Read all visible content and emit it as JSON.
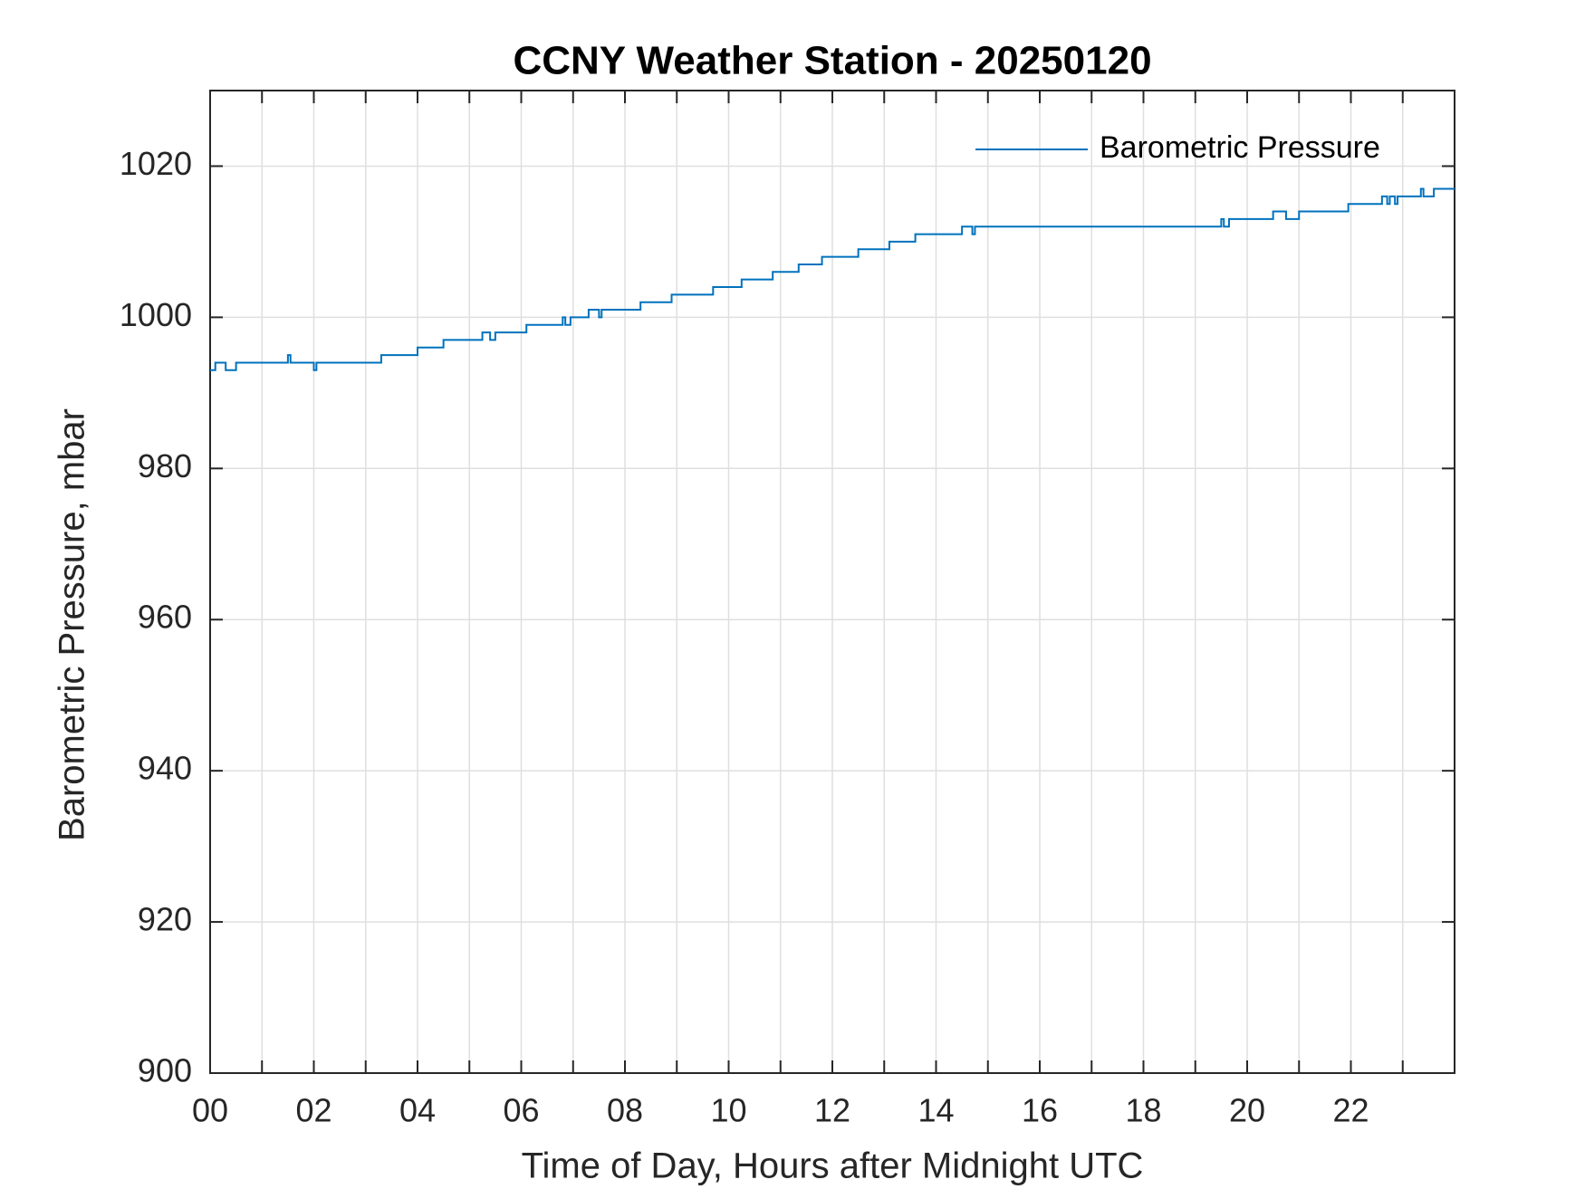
{
  "chart_data": {
    "type": "line",
    "title": "CCNY Weather Station - 20250120",
    "x_label": "Time of Day, Hours after Midnight UTC",
    "y_label": "Barometric Pressure, mbar",
    "xlim": [
      0,
      24
    ],
    "ylim": [
      900,
      1030
    ],
    "xticks": [
      {
        "value": 0,
        "label": "00"
      },
      {
        "value": 2,
        "label": "02"
      },
      {
        "value": 4,
        "label": "04"
      },
      {
        "value": 6,
        "label": "06"
      },
      {
        "value": 8,
        "label": "08"
      },
      10,
      12,
      14,
      16,
      18,
      20,
      22
    ],
    "x_minor_ticks": [
      1,
      3,
      5,
      7,
      9,
      11,
      13,
      15,
      17,
      19,
      21,
      23
    ],
    "yticks": [
      900,
      920,
      940,
      960,
      980,
      1000,
      1020
    ],
    "grid": true,
    "legend_position": "upper-right",
    "x": [
      0,
      0.1,
      0.1,
      0.3,
      0.3,
      0.5,
      0.5,
      1.5,
      1.5,
      1.55,
      1.55,
      2.0,
      2.0,
      2.05,
      2.05,
      3.3,
      3.3,
      4.0,
      4.0,
      4.5,
      4.5,
      5.25,
      5.25,
      5.4,
      5.4,
      5.5,
      5.5,
      6.1,
      6.1,
      6.8,
      6.8,
      6.85,
      6.85,
      6.95,
      6.95,
      7.3,
      7.3,
      7.5,
      7.5,
      7.55,
      7.55,
      8.3,
      8.3,
      8.9,
      8.9,
      9.7,
      9.7,
      10.25,
      10.25,
      10.85,
      10.85,
      11.35,
      11.35,
      11.8,
      11.8,
      12.5,
      12.5,
      13.1,
      13.1,
      13.6,
      13.6,
      14.5,
      14.5,
      14.7,
      14.7,
      14.75,
      14.75,
      19.5,
      19.5,
      19.55,
      19.55,
      19.65,
      19.65,
      20.5,
      20.5,
      20.75,
      20.75,
      21.0,
      21.0,
      21.95,
      21.95,
      22.6,
      22.6,
      22.7,
      22.7,
      22.75,
      22.75,
      22.85,
      22.85,
      22.9,
      22.9,
      23.35,
      23.35,
      23.4,
      23.4,
      23.6,
      23.6,
      24
    ],
    "series": [
      {
        "name": "Barometric Pressure",
        "color": "#0072bd",
        "values": [
          993,
          993,
          994,
          994,
          993,
          993,
          994,
          994,
          995,
          995,
          994,
          994,
          993,
          993,
          994,
          994,
          995,
          995,
          996,
          996,
          997,
          997,
          998,
          998,
          997,
          997,
          998,
          998,
          999,
          999,
          1000,
          1000,
          999,
          999,
          1000,
          1000,
          1001,
          1001,
          1000,
          1000,
          1001,
          1001,
          1002,
          1002,
          1003,
          1003,
          1004,
          1004,
          1005,
          1005,
          1006,
          1006,
          1007,
          1007,
          1008,
          1008,
          1009,
          1009,
          1010,
          1010,
          1011,
          1011,
          1012,
          1012,
          1011,
          1011,
          1012,
          1012,
          1013,
          1013,
          1012,
          1012,
          1013,
          1013,
          1014,
          1014,
          1013,
          1013,
          1014,
          1014,
          1015,
          1015,
          1016,
          1016,
          1015,
          1015,
          1016,
          1016,
          1015,
          1015,
          1016,
          1016,
          1017,
          1017,
          1016,
          1016,
          1017,
          1017
        ]
      }
    ]
  }
}
